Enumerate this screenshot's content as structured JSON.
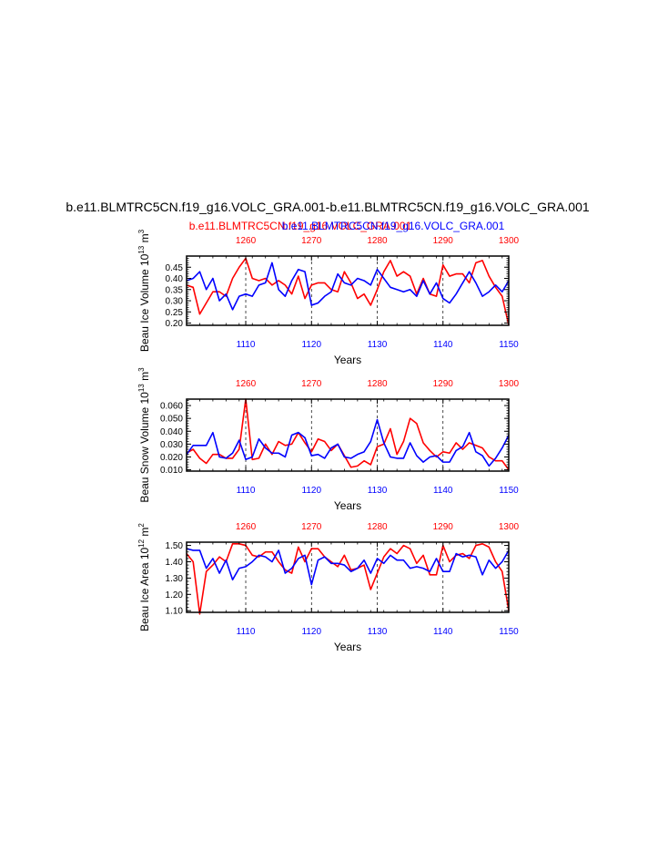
{
  "figure": {
    "title": "b.e11.BLMTRC5CN.f19_g16.VOLC_GRA.001-b.e11.BLMTRC5CN.f19_g16.VOLC_GRA.001",
    "legend_red": "b.e11.BLMTRC5CN.f19_g16.VOLC_GRA.001",
    "legend_blue": "b.e11.BLMTRC5CN.f19_g16.VOLC_GRA.001",
    "colors": {
      "red": "#ff0000",
      "blue": "#0000ff"
    }
  },
  "chart_data": [
    {
      "type": "line",
      "ylabel": "Beau Ice Volume 10",
      "ylabel_sup1": "13",
      "ylabel_unit": " m",
      "ylabel_sup2": "3",
      "xlabel": "Years",
      "ylim": [
        0.19,
        0.5
      ],
      "yticks": [
        "0.20",
        "0.25",
        "0.30",
        "0.35",
        "0.40",
        "0.45"
      ],
      "top_xlim": [
        1251,
        1300
      ],
      "top_xticks": [
        1260,
        1270,
        1280,
        1290,
        1300
      ],
      "bottom_xlim": [
        1101,
        1150
      ],
      "bottom_xticks": [
        1110,
        1120,
        1130,
        1140,
        1150
      ],
      "series": [
        {
          "color": "red",
          "axis": "top",
          "values": [
            0.37,
            0.36,
            0.24,
            0.29,
            0.34,
            0.34,
            0.32,
            0.4,
            0.45,
            0.49,
            0.4,
            0.39,
            0.4,
            0.37,
            0.39,
            0.37,
            0.33,
            0.41,
            0.31,
            0.37,
            0.38,
            0.38,
            0.35,
            0.34,
            0.43,
            0.38,
            0.31,
            0.33,
            0.28,
            0.35,
            0.43,
            0.48,
            0.41,
            0.43,
            0.41,
            0.33,
            0.4,
            0.33,
            0.32,
            0.46,
            0.41,
            0.42,
            0.42,
            0.38,
            0.47,
            0.48,
            0.41,
            0.36,
            0.32,
            0.19
          ]
        },
        {
          "color": "blue",
          "axis": "bottom",
          "values": [
            0.39,
            0.4,
            0.43,
            0.35,
            0.4,
            0.3,
            0.33,
            0.26,
            0.32,
            0.33,
            0.32,
            0.37,
            0.38,
            0.47,
            0.35,
            0.32,
            0.39,
            0.44,
            0.43,
            0.28,
            0.29,
            0.32,
            0.34,
            0.42,
            0.38,
            0.37,
            0.4,
            0.39,
            0.37,
            0.44,
            0.4,
            0.36,
            0.35,
            0.34,
            0.35,
            0.32,
            0.39,
            0.33,
            0.38,
            0.31,
            0.29,
            0.33,
            0.38,
            0.43,
            0.38,
            0.32,
            0.34,
            0.37,
            0.34,
            0.39
          ]
        }
      ]
    },
    {
      "type": "line",
      "ylabel": "Beau Snow Volume 10",
      "ylabel_sup1": "13",
      "ylabel_unit": " m",
      "ylabel_sup2": "3",
      "xlabel": "Years",
      "ylim": [
        0.009,
        0.065
      ],
      "yticks": [
        "0.010",
        "0.020",
        "0.030",
        "0.040",
        "0.050",
        "0.060"
      ],
      "top_xlim": [
        1251,
        1300
      ],
      "top_xticks": [
        1260,
        1270,
        1280,
        1290,
        1300
      ],
      "bottom_xlim": [
        1101,
        1150
      ],
      "bottom_xticks": [
        1110,
        1120,
        1130,
        1140,
        1150
      ],
      "series": [
        {
          "color": "red",
          "axis": "top",
          "values": [
            0.023,
            0.026,
            0.019,
            0.015,
            0.022,
            0.022,
            0.019,
            0.019,
            0.026,
            0.065,
            0.018,
            0.019,
            0.03,
            0.022,
            0.032,
            0.029,
            0.03,
            0.039,
            0.031,
            0.024,
            0.034,
            0.032,
            0.025,
            0.03,
            0.021,
            0.012,
            0.013,
            0.017,
            0.014,
            0.028,
            0.03,
            0.042,
            0.022,
            0.032,
            0.05,
            0.046,
            0.031,
            0.025,
            0.02,
            0.024,
            0.023,
            0.031,
            0.026,
            0.031,
            0.029,
            0.027,
            0.02,
            0.017,
            0.017,
            0.01
          ]
        },
        {
          "color": "blue",
          "axis": "bottom",
          "values": [
            0.022,
            0.029,
            0.029,
            0.029,
            0.039,
            0.02,
            0.019,
            0.023,
            0.033,
            0.018,
            0.02,
            0.034,
            0.027,
            0.023,
            0.023,
            0.02,
            0.037,
            0.039,
            0.035,
            0.021,
            0.022,
            0.019,
            0.027,
            0.03,
            0.02,
            0.019,
            0.022,
            0.024,
            0.032,
            0.049,
            0.031,
            0.02,
            0.019,
            0.019,
            0.031,
            0.021,
            0.016,
            0.02,
            0.021,
            0.016,
            0.016,
            0.025,
            0.028,
            0.039,
            0.024,
            0.021,
            0.013,
            0.019,
            0.027,
            0.037
          ]
        }
      ]
    },
    {
      "type": "line",
      "ylabel": "Beau Ice Area 10",
      "ylabel_sup1": "12",
      "ylabel_unit": " m",
      "ylabel_sup2": "2",
      "xlabel": "Years",
      "ylim": [
        1.09,
        1.52
      ],
      "yticks": [
        "1.10",
        "1.20",
        "1.30",
        "1.40",
        "1.50"
      ],
      "top_xlim": [
        1251,
        1300
      ],
      "top_xticks": [
        1260,
        1270,
        1280,
        1290,
        1300
      ],
      "bottom_xlim": [
        1101,
        1150
      ],
      "bottom_xticks": [
        1110,
        1120,
        1130,
        1140,
        1150
      ],
      "series": [
        {
          "color": "red",
          "axis": "top",
          "values": [
            1.45,
            1.4,
            1.08,
            1.34,
            1.38,
            1.43,
            1.4,
            1.51,
            1.51,
            1.5,
            1.44,
            1.43,
            1.46,
            1.46,
            1.4,
            1.35,
            1.33,
            1.49,
            1.4,
            1.48,
            1.48,
            1.43,
            1.4,
            1.37,
            1.44,
            1.35,
            1.36,
            1.38,
            1.23,
            1.33,
            1.43,
            1.48,
            1.45,
            1.5,
            1.48,
            1.39,
            1.44,
            1.32,
            1.32,
            1.5,
            1.4,
            1.44,
            1.45,
            1.42,
            1.5,
            1.51,
            1.49,
            1.4,
            1.34,
            1.1
          ]
        },
        {
          "color": "blue",
          "axis": "bottom",
          "values": [
            1.48,
            1.47,
            1.47,
            1.36,
            1.42,
            1.33,
            1.41,
            1.29,
            1.36,
            1.37,
            1.4,
            1.44,
            1.43,
            1.4,
            1.47,
            1.33,
            1.36,
            1.42,
            1.44,
            1.26,
            1.41,
            1.43,
            1.39,
            1.39,
            1.38,
            1.34,
            1.36,
            1.41,
            1.33,
            1.42,
            1.39,
            1.44,
            1.41,
            1.41,
            1.36,
            1.37,
            1.36,
            1.34,
            1.42,
            1.34,
            1.34,
            1.45,
            1.43,
            1.44,
            1.43,
            1.32,
            1.41,
            1.36,
            1.4,
            1.47
          ]
        }
      ]
    }
  ]
}
